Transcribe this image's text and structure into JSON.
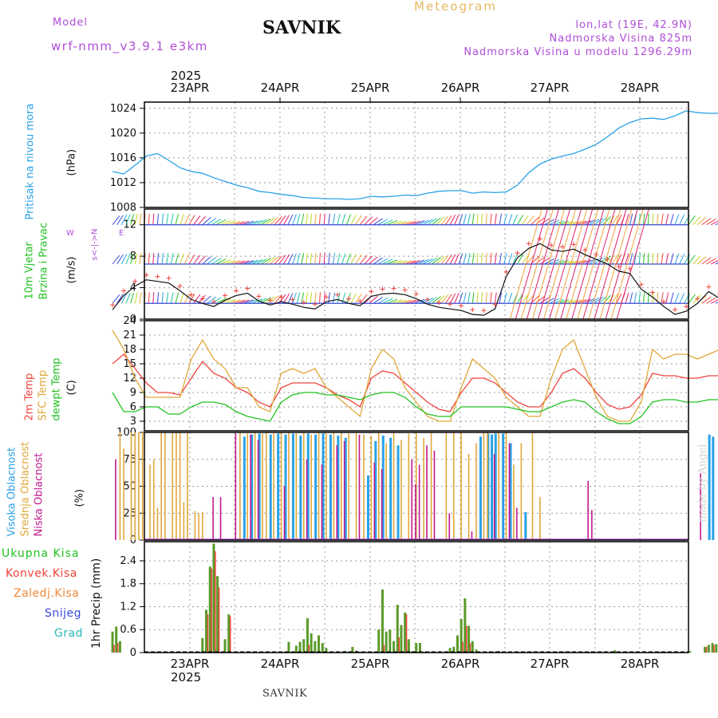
{
  "header": {
    "model_label": "Model",
    "model_name": "wrf-nmm_v3.9.1 e3km",
    "station": "SAVNIK",
    "title": "Meteogram",
    "coords": "lon,lat (19E, 42.9N)",
    "elevation": "Nadmorska Visina 825m",
    "model_elevation": "Nadmorska Visina u modelu 1296.29m"
  },
  "footer": {
    "station": "SAVNIK",
    "watermark": "made by Angel"
  },
  "colors": {
    "pressure": "#2aa1e6",
    "temp2m": "#f0443c",
    "sfc": "#e0a83a",
    "dewpt": "#22c222",
    "high_cloud": "#2aa1e6",
    "mid_cloud": "#e0a83a",
    "low_cloud": "#c2188e",
    "total_precip": "#5a9a2a",
    "conv_precip": "#f0443c",
    "violet": "#b04ed6"
  },
  "axis": {
    "year": "2025",
    "dates": [
      "23APR",
      "24APR",
      "25APR",
      "26APR",
      "27APR",
      "28APR"
    ]
  },
  "panels": {
    "pressure": {
      "label": "Pritisak na nivou mora",
      "unit": "(hPa)"
    },
    "wind": {
      "label1": "10m Vjetar",
      "label2": "Brzina i Pravac",
      "unit": "(m/s)",
      "compass_ns": "s<-|->N",
      "compass_w": "W",
      "compass_e": "E"
    },
    "temp": {
      "label1": "2m Temp",
      "label2": "SFC Temp",
      "label3": "dewpt Temp",
      "unit": "(C)"
    },
    "cloud": {
      "label1": "Visoka Oblacnost",
      "label2": "Srednja Oblacnost",
      "label3": "Niska Oblacnost",
      "unit": "(%)"
    },
    "precip": {
      "legend": [
        "Ukupna Kisa",
        "Konvek.Kisa",
        "Zaledj.Kisa",
        "Snijeg",
        "Grad"
      ],
      "unit": "1hr Precip (mm)"
    }
  },
  "chart_data": [
    {
      "type": "line",
      "title": "Pritisak na nivou mora",
      "ylabel": "(hPa)",
      "ylim": [
        1008,
        1025
      ],
      "yticks": [
        1008,
        1012,
        1016,
        1020,
        1024
      ],
      "x_hours": [
        0,
        3,
        6,
        9,
        12,
        15,
        18,
        21,
        24,
        27,
        30,
        33,
        36,
        39,
        42,
        45,
        48,
        51,
        54,
        57,
        60,
        63,
        66,
        69,
        72,
        75,
        78,
        81,
        84,
        87,
        90,
        93,
        96,
        99,
        102,
        105,
        108,
        111,
        114,
        117,
        120,
        123,
        126,
        129,
        132,
        135,
        138,
        141,
        144,
        147,
        150,
        153,
        156,
        159,
        162
      ],
      "series": [
        {
          "name": "pressure",
          "values": [
            1013.8,
            1013.4,
            1014.8,
            1016.3,
            1016.7,
            1015.6,
            1014.4,
            1013.8,
            1013.5,
            1012.8,
            1012.2,
            1011.6,
            1011.2,
            1010.6,
            1010.4,
            1010.1,
            1009.9,
            1009.6,
            1009.5,
            1009.4,
            1009.4,
            1009.3,
            1009.4,
            1009.8,
            1009.7,
            1009.8,
            1010.0,
            1009.9,
            1010.3,
            1010.6,
            1010.7,
            1010.7,
            1010.3,
            1010.5,
            1010.4,
            1010.5,
            1011.6,
            1013.6,
            1015.0,
            1015.8,
            1016.3,
            1016.7,
            1017.4,
            1018.2,
            1019.4,
            1020.8,
            1021.7,
            1022.3,
            1022.4,
            1022.2,
            1022.8,
            1023.6,
            1023.3,
            1023.2,
            1023.2
          ]
        }
      ]
    },
    {
      "type": "line",
      "title": "10m Vjetar Brzina i Pravac",
      "ylabel": "(m/s)",
      "ylim": [
        0,
        14
      ],
      "yticks": [
        0,
        4,
        8,
        12
      ],
      "x_hours": [
        0,
        3,
        6,
        9,
        12,
        15,
        18,
        21,
        24,
        27,
        30,
        33,
        36,
        39,
        42,
        45,
        48,
        51,
        54,
        57,
        60,
        63,
        66,
        69,
        72,
        75,
        78,
        81,
        84,
        87,
        90,
        93,
        96,
        99,
        102,
        105,
        108,
        111,
        114,
        117,
        120,
        123,
        126,
        129,
        132,
        135,
        138,
        141,
        144,
        147,
        150,
        153,
        156,
        159,
        162
      ],
      "series": [
        {
          "name": "wind speed",
          "values": [
            1.2,
            3.0,
            4.2,
            5.0,
            4.8,
            4.6,
            3.6,
            2.5,
            2.0,
            1.6,
            2.4,
            3.0,
            3.3,
            2.3,
            1.8,
            2.2,
            1.9,
            1.5,
            1.3,
            2.2,
            2.5,
            2.0,
            1.7,
            2.9,
            3.2,
            3.3,
            3.1,
            2.6,
            1.9,
            1.5,
            1.3,
            1.1,
            0.6,
            0.5,
            1.3,
            5.4,
            7.8,
            9.0,
            9.6,
            8.8,
            8.6,
            8.9,
            8.2,
            7.6,
            7.0,
            6.1,
            5.8,
            3.8,
            2.8,
            1.6,
            0.6,
            1.0,
            2.0,
            3.5,
            2.6
          ]
        }
      ],
      "wind_barb_levels": [
        2,
        7,
        12
      ]
    },
    {
      "type": "line",
      "title": "2m Temp / SFC Temp / dewpt Temp",
      "ylabel": "(C)",
      "ylim": [
        1,
        24
      ],
      "yticks": [
        3,
        6,
        9,
        12,
        15,
        18,
        21,
        24
      ],
      "x_hours": [
        0,
        3,
        6,
        9,
        12,
        15,
        18,
        21,
        24,
        27,
        30,
        33,
        36,
        39,
        42,
        45,
        48,
        51,
        54,
        57,
        60,
        63,
        66,
        69,
        72,
        75,
        78,
        81,
        84,
        87,
        90,
        93,
        96,
        99,
        102,
        105,
        108,
        111,
        114,
        117,
        120,
        123,
        126,
        129,
        132,
        135,
        138,
        141,
        144,
        147,
        150,
        153,
        156,
        159,
        162
      ],
      "series": [
        {
          "name": "2m Temp",
          "values": [
            15,
            17,
            14,
            11,
            9,
            9,
            8.5,
            12,
            15.5,
            13,
            12,
            10,
            9,
            7,
            6,
            10,
            11,
            11,
            11,
            10,
            8.5,
            7.5,
            6,
            12,
            13.5,
            13,
            11,
            9,
            7,
            5.5,
            5,
            9,
            12,
            12,
            11,
            9,
            7,
            6,
            6,
            9,
            13,
            14,
            12,
            9,
            6.5,
            5.5,
            6,
            8.5,
            13,
            12.5,
            12.5,
            12,
            12,
            12.5,
            12.5
          ]
        },
        {
          "name": "SFC Temp",
          "values": [
            22,
            18,
            12,
            8,
            8,
            8,
            8,
            16,
            20,
            16,
            14,
            10,
            10,
            6,
            5,
            13,
            14,
            13,
            14,
            10,
            8,
            6,
            4,
            14,
            18,
            16,
            10,
            7,
            4,
            3,
            3,
            10,
            16,
            14,
            12,
            8,
            6,
            4,
            4,
            12,
            18,
            20,
            14,
            8,
            4,
            3,
            3,
            7,
            18,
            16,
            17,
            17,
            16,
            17,
            18
          ]
        },
        {
          "name": "dewpt Temp",
          "values": [
            9,
            5,
            5,
            6,
            6,
            4.5,
            4.5,
            6,
            7,
            7,
            6.5,
            5,
            4,
            3.5,
            3,
            7,
            8.5,
            9,
            9,
            8.5,
            8.5,
            8,
            7.5,
            8.5,
            9,
            9,
            8,
            6,
            4.5,
            4,
            4,
            6,
            6,
            6,
            6,
            6,
            5.5,
            5,
            5,
            6,
            7,
            7.5,
            7,
            5,
            3.5,
            2.5,
            2.5,
            4,
            7,
            7.5,
            7.5,
            7,
            7,
            7.5,
            7.5
          ]
        }
      ]
    },
    {
      "type": "bar",
      "title": "Visoka / Srednja / Niska Oblacnost",
      "ylabel": "(%)",
      "ylim": [
        0,
        100
      ],
      "yticks": [
        0,
        25,
        50,
        75,
        100
      ],
      "series": [
        {
          "name": "Visoka Oblacnost",
          "hours": [
            35,
            37,
            39,
            42,
            44,
            46,
            48,
            50,
            52,
            54,
            56,
            58,
            60,
            62,
            68,
            70,
            72,
            74,
            76,
            98,
            100,
            101,
            102,
            104,
            106,
            110,
            159,
            160
          ],
          "values": [
            96,
            98,
            99,
            98,
            99,
            98,
            99,
            97,
            99,
            98,
            99,
            98,
            97,
            95,
            60,
            92,
            97,
            95,
            88,
            96,
            99,
            98,
            99,
            99,
            90,
            26,
            98,
            96
          ]
        },
        {
          "name": "Srednja Oblacnost",
          "hours": [
            2,
            3,
            5,
            6,
            7,
            8,
            10,
            11,
            12,
            13,
            14,
            16,
            17,
            18,
            19,
            20,
            22,
            23,
            24,
            34,
            36,
            38,
            40,
            41,
            43,
            45,
            47,
            49,
            51,
            53,
            55,
            57,
            59,
            61,
            63,
            65,
            67,
            69,
            71,
            73,
            75,
            77,
            79,
            81,
            83,
            85,
            89,
            91,
            93,
            95,
            97,
            99,
            100,
            103,
            105,
            107,
            109,
            112,
            114
          ],
          "values": [
            100,
            85,
            100,
            100,
            100,
            100,
            70,
            75,
            30,
            100,
            100,
            100,
            100,
            100,
            35,
            100,
            27,
            25,
            26,
            100,
            99,
            100,
            99,
            100,
            99,
            100,
            100,
            99,
            100,
            98,
            100,
            99,
            100,
            100,
            99,
            100,
            98,
            97,
            100,
            90,
            100,
            93,
            99,
            100,
            95,
            100,
            100,
            100,
            100,
            80,
            90,
            100,
            100,
            100,
            100,
            70,
            90,
            100,
            40
          ]
        },
        {
          "name": "Niska Oblacnost",
          "hours": [
            1,
            27,
            29,
            33,
            37,
            39,
            46,
            52,
            56,
            60,
            62,
            66,
            70,
            72,
            80,
            81,
            82,
            84,
            86,
            90,
            96,
            102,
            106,
            108,
            127,
            128,
            157
          ],
          "values": [
            75,
            40,
            40,
            99,
            98,
            93,
            50,
            75,
            70,
            88,
            92,
            98,
            72,
            66,
            75,
            52,
            70,
            88,
            83,
            25,
            8,
            80,
            90,
            30,
            55,
            28,
            62
          ]
        }
      ]
    },
    {
      "type": "bar",
      "title": "1hr Precip",
      "ylabel": "1hr Precip (mm)",
      "ylim": [
        0,
        2.9
      ],
      "yticks": [
        0,
        0.6,
        1.2,
        1.8,
        2.4
      ],
      "series": [
        {
          "name": "Ukupna Kisa",
          "hours": [
            0,
            1,
            2,
            24,
            25,
            26,
            27,
            28,
            30,
            31,
            47,
            49,
            50,
            51,
            52,
            53,
            54,
            55,
            56,
            57,
            62,
            63,
            64,
            65,
            66,
            67,
            71,
            72,
            73,
            74,
            75,
            76,
            77,
            78,
            79,
            80,
            81,
            82,
            83,
            90,
            91,
            92,
            93,
            94,
            95,
            96,
            97,
            103,
            134,
            154,
            158,
            159,
            160,
            161
          ],
          "values": [
            0.55,
            0.68,
            0.3,
            0.38,
            1.12,
            2.25,
            2.85,
            2.0,
            0.35,
            1.0,
            0.28,
            0.18,
            0.28,
            0.35,
            0.9,
            0.5,
            0.3,
            0.45,
            0.25,
            0.12,
            0.04,
            0.03,
            0.15,
            0.05,
            0.02,
            0.02,
            0.6,
            1.65,
            0.55,
            0.6,
            0.3,
            1.25,
            0.72,
            1.05,
            0.35,
            0.04,
            0.25,
            0.25,
            0.02,
            0.12,
            0.15,
            0.45,
            0.88,
            1.42,
            0.7,
            0.3,
            0.08,
            0.04,
            0.06,
            0.04,
            0.15,
            0.2,
            0.25,
            0.22
          ]
        },
        {
          "name": "Konvek.Kisa",
          "hours": [
            0,
            1,
            25,
            26,
            27,
            28,
            31,
            52,
            72,
            76,
            78,
            93,
            94,
            95,
            158,
            160
          ],
          "values": [
            0.2,
            0.25,
            1.0,
            2.2,
            2.65,
            1.7,
            0.95,
            0.2,
            0.2,
            0.4,
            1.0,
            0.28,
            0.7,
            0.25,
            0.15,
            0.2
          ]
        }
      ]
    }
  ]
}
